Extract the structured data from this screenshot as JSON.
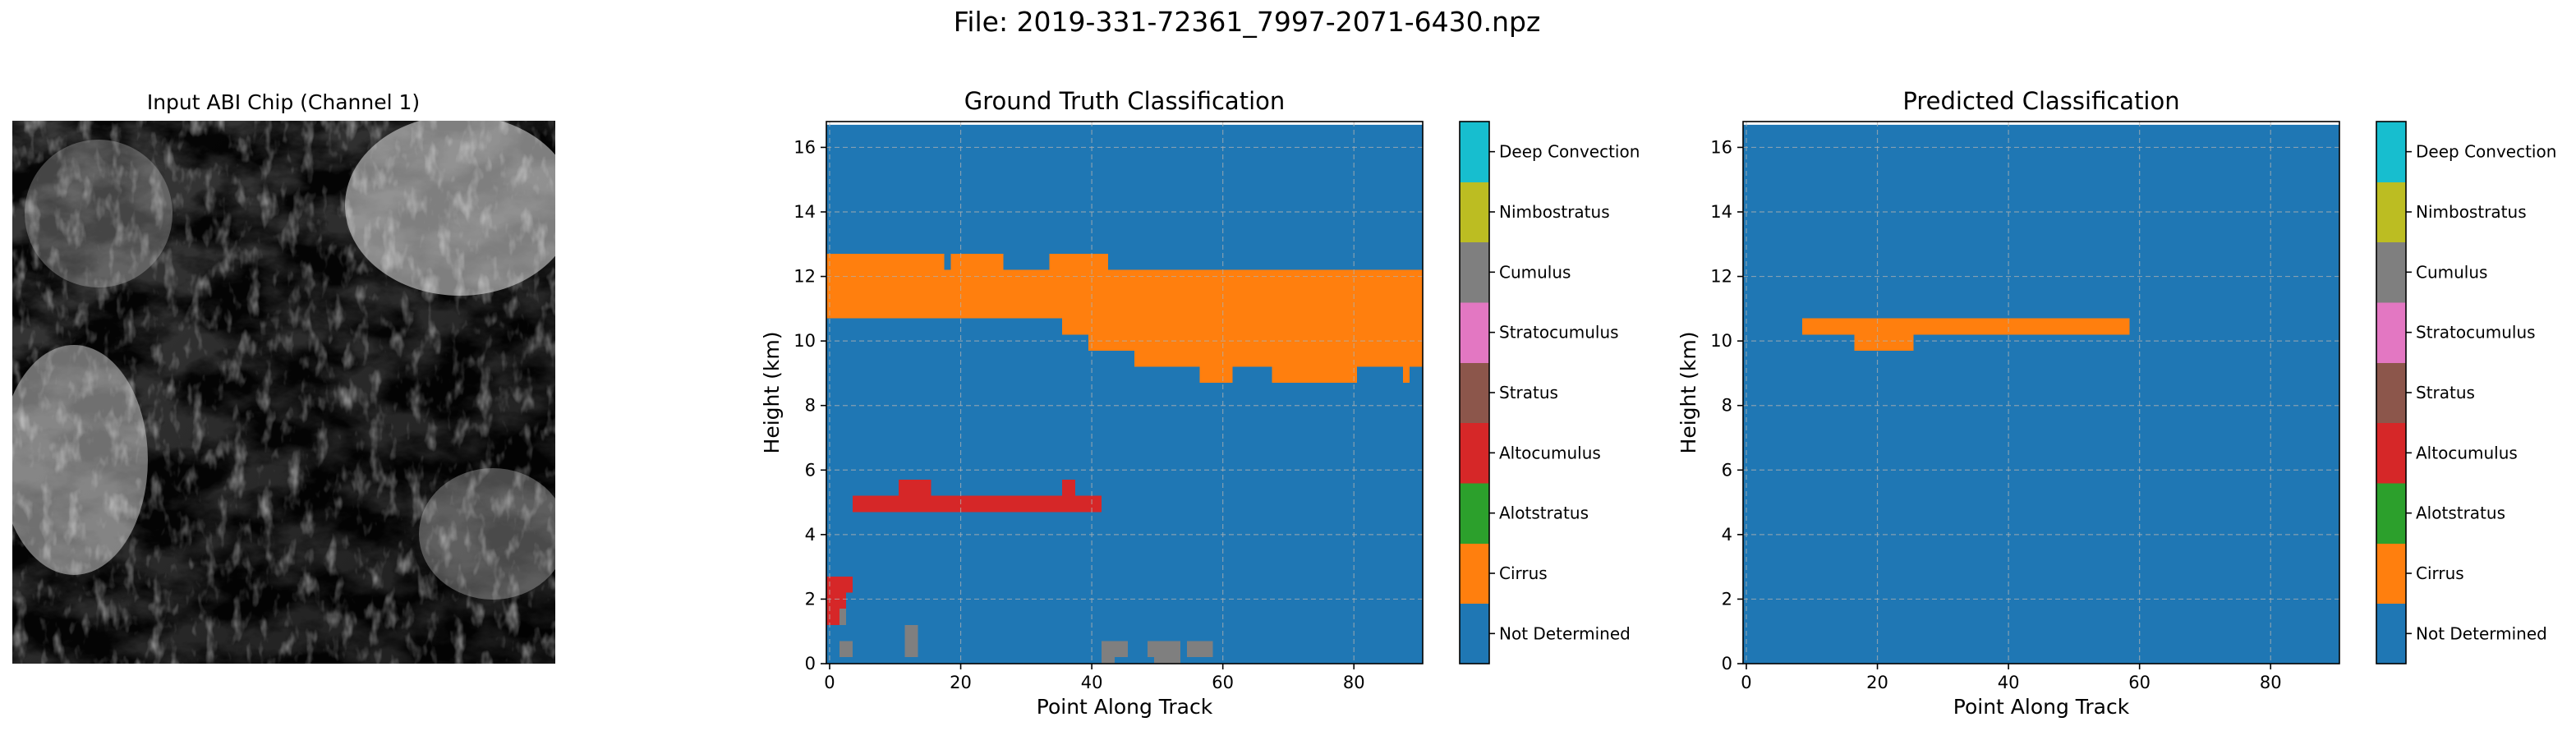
{
  "suptitle": "File: 2019-331-72361_7997-2071-6430.npz",
  "colors": {
    "background": "#1f77b4",
    "grid": "#b0b0b0"
  },
  "input_image": {
    "title": "Input ABI Chip (Channel 1)",
    "content": "grayscale satellite chip of scattered clouds"
  },
  "classes": [
    {
      "label": "Not Determined",
      "color": "#1f77b4"
    },
    {
      "label": "Cirrus",
      "color": "#ff7f0e"
    },
    {
      "label": "Alotstratus",
      "color": "#2ca02c"
    },
    {
      "label": "Altocumulus",
      "color": "#d62728"
    },
    {
      "label": "Stratus",
      "color": "#8c564b"
    },
    {
      "label": "Stratocumulus",
      "color": "#e377c2"
    },
    {
      "label": "Cumulus",
      "color": "#7f7f7f"
    },
    {
      "label": "Nimbostratus",
      "color": "#bcbd22"
    },
    {
      "label": "Deep Convection",
      "color": "#17becf"
    }
  ],
  "chart_data": [
    {
      "type": "heatmap",
      "title": "Ground Truth Classification",
      "xlabel": "Point Along Track",
      "ylabel": "Height (km)",
      "xlim": [
        -0.5,
        90.5
      ],
      "ylim": [
        0,
        16.8
      ],
      "xticks": [
        0,
        20,
        40,
        60,
        80
      ],
      "yticks": [
        0,
        2,
        4,
        6,
        8,
        10,
        12,
        14,
        16
      ],
      "grid": true,
      "colorbar": "right",
      "background_class": "Not Determined",
      "regions": [
        {
          "class": "Cirrus",
          "x": [
            -0.5,
            17.5
          ],
          "y": [
            10.7,
            12.7
          ]
        },
        {
          "class": "Cirrus",
          "x": [
            17.5,
            18.5
          ],
          "y": [
            10.7,
            12.2
          ]
        },
        {
          "class": "Cirrus",
          "x": [
            18.5,
            26.5
          ],
          "y": [
            10.7,
            12.7
          ]
        },
        {
          "class": "Cirrus",
          "x": [
            26.5,
            33.5
          ],
          "y": [
            10.7,
            12.2
          ]
        },
        {
          "class": "Cirrus",
          "x": [
            33.5,
            42.5
          ],
          "y": [
            10.7,
            12.7
          ]
        },
        {
          "class": "Cirrus",
          "x": [
            35.5,
            42.5
          ],
          "y": [
            10.2,
            10.7
          ]
        },
        {
          "class": "Cirrus",
          "x": [
            42.5,
            90.5
          ],
          "y": [
            10.2,
            12.2
          ]
        },
        {
          "class": "Cirrus",
          "x": [
            39.5,
            46.5
          ],
          "y": [
            9.7,
            10.2
          ]
        },
        {
          "class": "Cirrus",
          "x": [
            46.5,
            90.5
          ],
          "y": [
            9.2,
            10.2
          ]
        },
        {
          "class": "Cirrus",
          "x": [
            56.5,
            61.5
          ],
          "y": [
            8.7,
            9.2
          ]
        },
        {
          "class": "Cirrus",
          "x": [
            67.5,
            80.5
          ],
          "y": [
            8.7,
            9.2
          ]
        },
        {
          "class": "Cirrus",
          "x": [
            87.5,
            88.5
          ],
          "y": [
            8.7,
            9.2
          ]
        },
        {
          "class": "Altocumulus",
          "x": [
            3.5,
            41.5
          ],
          "y": [
            4.7,
            5.2
          ]
        },
        {
          "class": "Altocumulus",
          "x": [
            10.5,
            15.5
          ],
          "y": [
            5.2,
            5.7
          ]
        },
        {
          "class": "Altocumulus",
          "x": [
            35.5,
            37.5
          ],
          "y": [
            5.2,
            5.7
          ]
        },
        {
          "class": "Altocumulus",
          "x": [
            -0.5,
            3.5
          ],
          "y": [
            2.2,
            2.7
          ]
        },
        {
          "class": "Altocumulus",
          "x": [
            -0.5,
            2.5
          ],
          "y": [
            1.2,
            2.2
          ]
        },
        {
          "class": "Cumulus",
          "x": [
            1.5,
            2.5
          ],
          "y": [
            1.2,
            1.7
          ]
        },
        {
          "class": "Cumulus",
          "x": [
            1.5,
            3.5
          ],
          "y": [
            0.2,
            0.7
          ]
        },
        {
          "class": "Cumulus",
          "x": [
            11.5,
            13.5
          ],
          "y": [
            0.2,
            1.2
          ]
        },
        {
          "class": "Cumulus",
          "x": [
            41.5,
            45.5
          ],
          "y": [
            0.2,
            0.7
          ]
        },
        {
          "class": "Cumulus",
          "x": [
            48.5,
            53.5
          ],
          "y": [
            0.2,
            0.7
          ]
        },
        {
          "class": "Cumulus",
          "x": [
            54.5,
            58.5
          ],
          "y": [
            0.2,
            0.7
          ]
        },
        {
          "class": "Cumulus",
          "x": [
            41.5,
            43.5
          ],
          "y": [
            0.0,
            0.2
          ]
        },
        {
          "class": "Cumulus",
          "x": [
            49.5,
            53.5
          ],
          "y": [
            0.0,
            0.2
          ]
        }
      ]
    },
    {
      "type": "heatmap",
      "title": "Predicted Classification",
      "xlabel": "Point Along Track",
      "ylabel": "Height (km)",
      "xlim": [
        -0.5,
        90.5
      ],
      "ylim": [
        0,
        16.8
      ],
      "xticks": [
        0,
        20,
        40,
        60,
        80
      ],
      "yticks": [
        0,
        2,
        4,
        6,
        8,
        10,
        12,
        14,
        16
      ],
      "grid": true,
      "colorbar": "right",
      "background_class": "Not Determined",
      "regions": [
        {
          "class": "Cirrus",
          "x": [
            8.5,
            58.5
          ],
          "y": [
            10.2,
            10.7
          ]
        },
        {
          "class": "Cirrus",
          "x": [
            16.5,
            25.5
          ],
          "y": [
            9.7,
            10.2
          ]
        }
      ]
    }
  ]
}
